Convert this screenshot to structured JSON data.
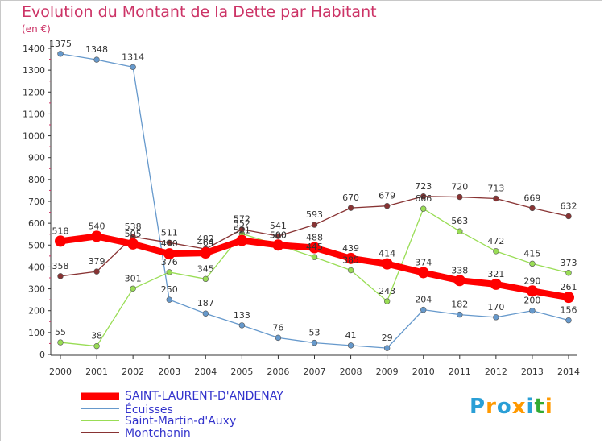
{
  "title": "Evolution du Montant de la Dette par Habitant",
  "unit_label": "(en €)",
  "logo_text": "Proxiti",
  "chart_data": {
    "type": "line",
    "title": "Evolution du Montant de la Dette par Habitant",
    "ylabel": "(en €)",
    "xlabel": "",
    "ylim": [
      0,
      1400
    ],
    "y_ticks": [
      0,
      100,
      200,
      300,
      400,
      500,
      600,
      700,
      800,
      900,
      1000,
      1100,
      1200,
      1300,
      1400
    ],
    "grid": false,
    "legend_position": "bottom-left",
    "x": [
      "2000",
      "2001",
      "2002",
      "2003",
      "2004",
      "2005",
      "2006",
      "2007",
      "2008",
      "2009",
      "2010",
      "2011",
      "2012",
      "2013",
      "2014"
    ],
    "series": [
      {
        "name": "SAINT-LAURENT-D'ANDENAY",
        "color": "#ff0000",
        "values": [
          518,
          540,
          505,
          460,
          464,
          521,
          500,
          488,
          439,
          414,
          374,
          338,
          321,
          290,
          261
        ]
      },
      {
        "name": "Écuisses",
        "color": "#6699cc",
        "values": [
          1375,
          1348,
          1314,
          250,
          187,
          133,
          76,
          53,
          41,
          29,
          204,
          182,
          170,
          200,
          156
        ]
      },
      {
        "name": "Saint-Martin-d'Auxy",
        "color": "#99dd55",
        "values": [
          55,
          38,
          301,
          376,
          345,
          552,
          500,
          445,
          385,
          243,
          666,
          563,
          472,
          415,
          373
        ]
      },
      {
        "name": "Montchanin",
        "color": "#883333",
        "values": [
          358,
          379,
          538,
          511,
          482,
          572,
          541,
          593,
          670,
          679,
          723,
          720,
          713,
          669,
          632
        ]
      }
    ]
  }
}
